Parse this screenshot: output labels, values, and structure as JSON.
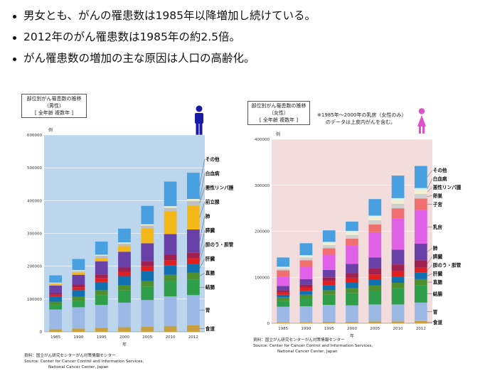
{
  "bullets": [
    "男女とも、がんの罹患数は1985年以降増加し続けている。",
    "2012年のがん罹患数は1985年の約2.5倍。",
    "がん罹患数の増加の主な原因は人口の高齢化。"
  ],
  "colors": {
    "male_plot_bg": "#bcd6ee",
    "female_plot_bg": "#f2dcdc",
    "male_icon": "#1a1aa8",
    "female_icon": "#e050c8"
  },
  "chart_data": [
    {
      "type": "bar",
      "stacked": true,
      "title": "部位別がん罹患数の推移",
      "subtitle": "（男性）",
      "note": "[ 全年齢 複数年 ]",
      "ylabel": "例",
      "xlabel": "年",
      "ylim": [
        0,
        600000
      ],
      "yticks": [
        "0",
        "100000",
        "200000",
        "300000",
        "400000",
        "500000",
        "600000"
      ],
      "categories": [
        "1985",
        "1990",
        "1995",
        "2000",
        "2005",
        "2010",
        "2012"
      ],
      "series": [
        {
          "name": "食道",
          "color": "#c8a040",
          "values": [
            8000,
            10000,
            12000,
            14000,
            15000,
            18000,
            20000
          ]
        },
        {
          "name": "胃",
          "color": "#9cb8e4",
          "values": [
            60000,
            65000,
            70000,
            75000,
            82000,
            90000,
            92000
          ]
        },
        {
          "name": "結腸",
          "color": "#2e9e4a",
          "values": [
            14000,
            20000,
            30000,
            37000,
            41000,
            47000,
            48000
          ]
        },
        {
          "name": "直腸",
          "color": "#4e9030",
          "values": [
            10000,
            12000,
            15000,
            16000,
            17000,
            19000,
            20000
          ]
        },
        {
          "name": "肝臓",
          "color": "#1070b0",
          "values": [
            15000,
            20000,
            25000,
            28000,
            30000,
            28000,
            27000
          ]
        },
        {
          "name": "胆のう・胆管",
          "color": "#e02020",
          "values": [
            6000,
            9000,
            12000,
            13000,
            15000,
            16000,
            17000
          ]
        },
        {
          "name": "膵臓",
          "color": "#a02050",
          "values": [
            5000,
            8000,
            11000,
            13000,
            15000,
            17000,
            17000
          ]
        },
        {
          "name": "肺",
          "color": "#6840a8",
          "values": [
            23000,
            30000,
            40000,
            48000,
            55000,
            63000,
            71000
          ]
        },
        {
          "name": "前立腺",
          "color": "#f4b818",
          "values": [
            4000,
            6000,
            10000,
            17000,
            45000,
            70000,
            73000
          ]
        },
        {
          "name": "悪性リンパ腫",
          "color": "#c0c0c0",
          "values": [
            3000,
            5000,
            7000,
            8000,
            9000,
            10000,
            14000
          ]
        },
        {
          "name": "白血病",
          "color": "#f0f0d0",
          "values": [
            2000,
            3000,
            3000,
            3500,
            4000,
            5000,
            6000
          ]
        },
        {
          "name": "その他",
          "color": "#48a0e0",
          "values": [
            22000,
            34000,
            40000,
            42000,
            56000,
            75000,
            80000
          ]
        }
      ],
      "source": "資料：国立がん研究センターがん対策情報センター",
      "source_en_1": "Source: Center for Cancer Control and Information Services,",
      "source_en_2": "National Cancer Center, Japan"
    },
    {
      "type": "bar",
      "stacked": true,
      "title": "部位別がん罹患数の推移",
      "subtitle": "（女性）",
      "note": "[ 全年齢 複数年 ]",
      "annotation_1": "※1985年～2000年の乳房（女性のみ）",
      "annotation_2": "のデータは上皮内がんを含む。",
      "ylabel": "例",
      "xlabel": "年",
      "ylim": [
        0,
        400000
      ],
      "yticks": [
        "0",
        "100000",
        "200000",
        "300000",
        "400000"
      ],
      "categories": [
        "1985",
        "1990",
        "1995",
        "2000",
        "2005",
        "2010",
        "2012"
      ],
      "series": [
        {
          "name": "食道",
          "color": "#c8a040",
          "values": [
            2000,
            2000,
            3000,
            3000,
            4000,
            4000,
            5000
          ]
        },
        {
          "name": "胃",
          "color": "#9cb8e4",
          "values": [
            34000,
            35000,
            37000,
            36000,
            37000,
            37000,
            40000
          ]
        },
        {
          "name": "結腸",
          "color": "#2e9e4a",
          "values": [
            13000,
            17000,
            22000,
            27000,
            30000,
            35000,
            38000
          ]
        },
        {
          "name": "直腸",
          "color": "#4e9030",
          "values": [
            7000,
            8000,
            10000,
            10000,
            11000,
            12000,
            13000
          ]
        },
        {
          "name": "肝臓",
          "color": "#1070b0",
          "values": [
            6000,
            8000,
            10000,
            12000,
            13000,
            14000,
            14000
          ]
        },
        {
          "name": "胆のう・胆管",
          "color": "#e02020",
          "values": [
            6000,
            8000,
            10000,
            11000,
            11000,
            11000,
            11000
          ]
        },
        {
          "name": "膵臓",
          "color": "#a02050",
          "values": [
            4000,
            6000,
            8000,
            10000,
            13000,
            15000,
            16000
          ]
        },
        {
          "name": "肺",
          "color": "#6840a8",
          "values": [
            9000,
            12000,
            16000,
            20000,
            24000,
            32000,
            36000
          ]
        },
        {
          "name": "乳房",
          "color": "#e060e8",
          "values": [
            20000,
            26000,
            33000,
            40000,
            55000,
            68000,
            73000
          ]
        },
        {
          "name": "子宮",
          "color": "#f07070",
          "values": [
            14000,
            15000,
            14000,
            15000,
            17000,
            22000,
            25000
          ]
        },
        {
          "name": "卵巣",
          "color": "#d0d0d0",
          "values": [
            4000,
            6000,
            7000,
            8000,
            9000,
            10000,
            10000
          ]
        },
        {
          "name": "悪性リンパ腫",
          "color": "#f0f0d0",
          "values": [
            2000,
            3000,
            5000,
            6000,
            7000,
            8000,
            9000
          ]
        },
        {
          "name": "白血病",
          "color": "#d8f0f0",
          "values": [
            2000,
            2000,
            2000,
            3000,
            3000,
            4000,
            4000
          ]
        },
        {
          "name": "その他",
          "color": "#48a0e0",
          "values": [
            20000,
            26000,
            25000,
            20000,
            36000,
            49000,
            48000
          ]
        }
      ],
      "source": "資料：国立がん研究センターがん対策情報センター",
      "source_en_1": "Source: Center for Cancer Control and Information Services,",
      "source_en_2": "National Cancer Center, Japan"
    }
  ]
}
